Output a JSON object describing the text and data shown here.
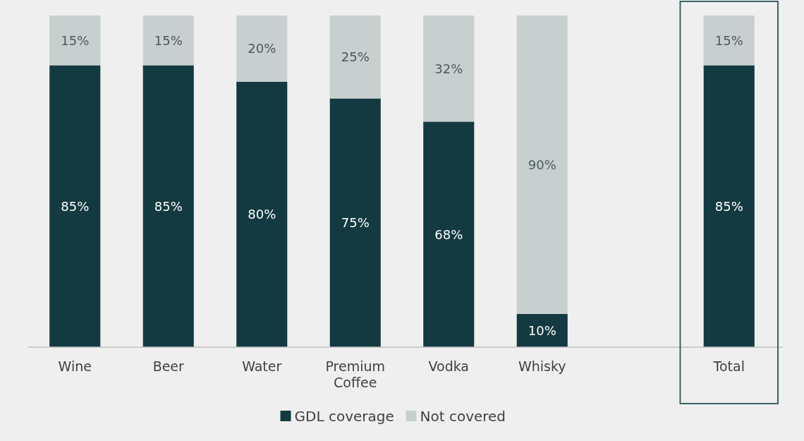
{
  "chart_data": {
    "type": "bar",
    "stacked": true,
    "categories": [
      "Wine",
      "Beer",
      "Water",
      "Premium Coffee",
      "Vodka",
      "Whisky",
      null,
      "Total"
    ],
    "series": [
      {
        "name": "GDL coverage",
        "color": "#133a40",
        "values": [
          85,
          85,
          80,
          75,
          68,
          10,
          null,
          85
        ],
        "value_labels": [
          "85%",
          "85%",
          "80%",
          "75%",
          "68%",
          "10%",
          null,
          "85%"
        ]
      },
      {
        "name": "Not covered",
        "color": "#c8cfcf",
        "values": [
          15,
          15,
          20,
          25,
          32,
          90,
          null,
          15
        ],
        "value_labels": [
          "15%",
          "15%",
          "20%",
          "25%",
          "32%",
          "90%",
          null,
          "15%"
        ]
      }
    ],
    "legend": "bottom",
    "grid": false
  }
}
